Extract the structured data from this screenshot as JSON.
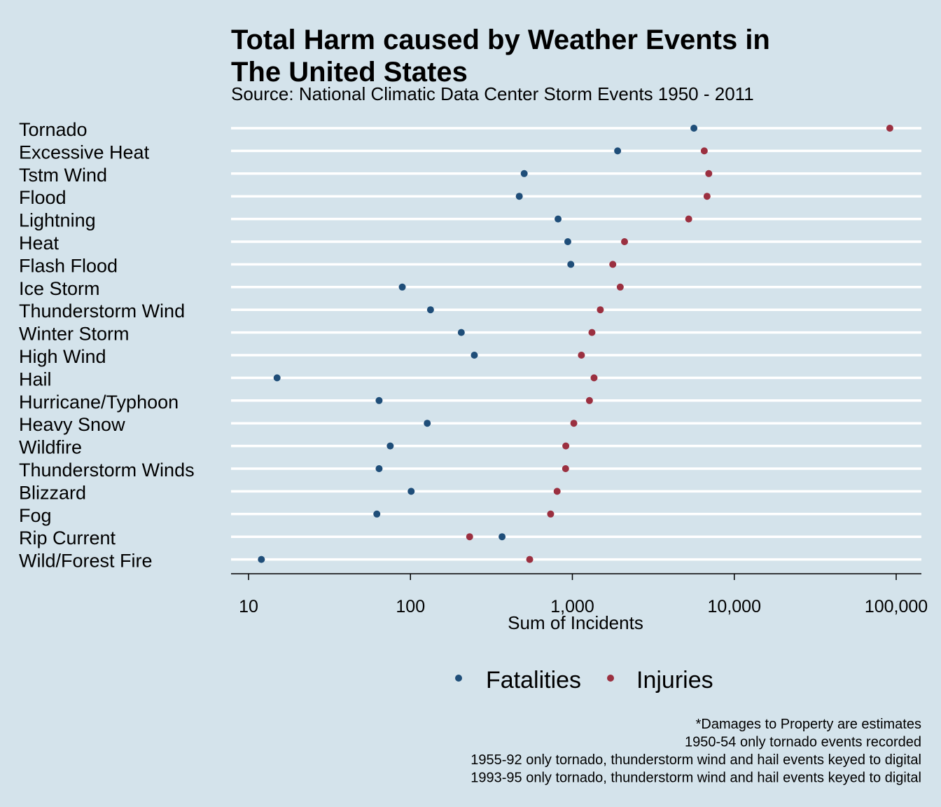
{
  "chart_data": {
    "type": "scatter",
    "title_lines": [
      "Total Harm caused by Weather Events in",
      "The United States"
    ],
    "subtitle": "Source: National Climatic Data Center Storm Events 1950 - 2011",
    "xlabel": "Sum of Incidents",
    "ylabel": "",
    "x_scale": "log10",
    "xlim": [
      8,
      140000
    ],
    "x_ticks": [
      10,
      100,
      1000,
      10000,
      100000
    ],
    "x_tick_labels": [
      "10",
      "100",
      "1,000",
      "10,000",
      "100,000"
    ],
    "categories": [
      "Tornado",
      "Excessive Heat",
      "Tstm Wind",
      "Flood",
      "Lightning",
      "Heat",
      "Flash Flood",
      "Ice Storm",
      "Thunderstorm Wind",
      "Winter Storm",
      "High Wind",
      "Hail",
      "Hurricane/Typhoon",
      "Heavy Snow",
      "Wildfire",
      "Thunderstorm Winds",
      "Blizzard",
      "Fog",
      "Rip Current",
      "Wild/Forest Fire"
    ],
    "series": [
      {
        "name": "Fatalities",
        "color": "#1f4e79",
        "values": [
          5633,
          1903,
          504,
          470,
          816,
          937,
          978,
          89,
          133,
          206,
          248,
          15,
          64,
          127,
          75,
          64,
          101,
          62,
          368,
          12
        ]
      },
      {
        "name": "Injuries",
        "color": "#9b3040",
        "values": [
          91346,
          6525,
          6957,
          6789,
          5230,
          2100,
          1777,
          1975,
          1488,
          1321,
          1137,
          1361,
          1275,
          1021,
          911,
          908,
          805,
          734,
          232,
          545
        ]
      }
    ],
    "legend_position": "bottom",
    "grid": "horizontal",
    "footnotes": [
      "*Damages to Property are estimates",
      "1950-54 only tornado events recorded",
      "1955-92 only tornado, thunderstorm wind and hail events keyed to digital",
      "1993-95 only tornado, thunderstorm wind and hail events keyed to digital"
    ]
  }
}
